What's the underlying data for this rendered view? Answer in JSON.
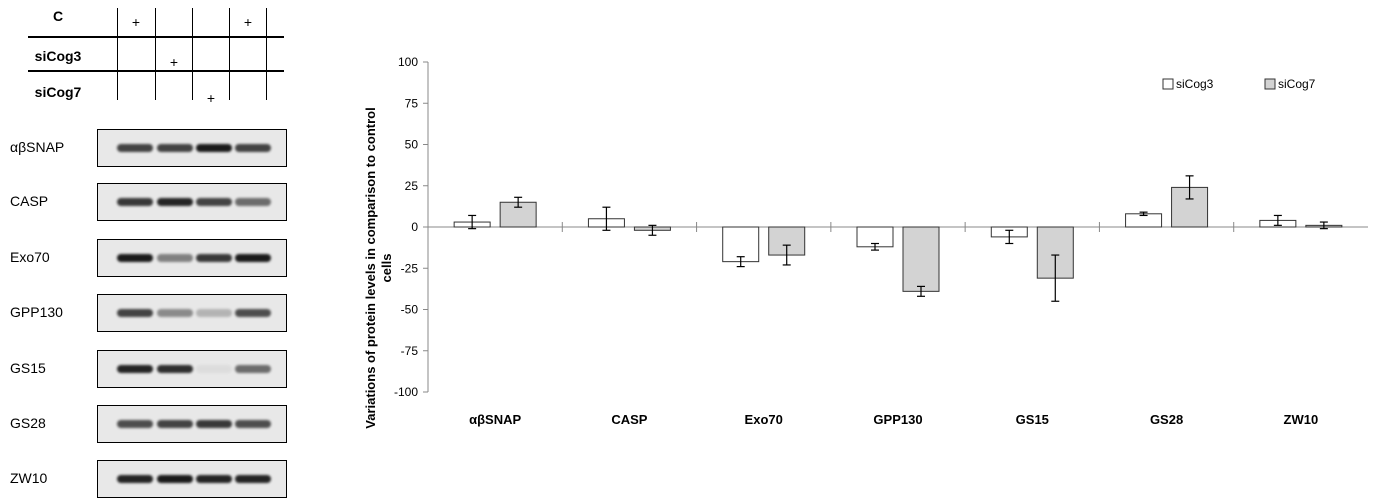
{
  "conditions": {
    "rows": [
      {
        "label": "C",
        "marks": [
          "+",
          "",
          "",
          "+"
        ]
      },
      {
        "label": "siCog3",
        "marks": [
          "",
          "+",
          "",
          ""
        ]
      },
      {
        "label": "siCog7",
        "marks": [
          "",
          "",
          "+",
          ""
        ]
      }
    ]
  },
  "blots": [
    {
      "label": "αβSNAP",
      "intensity": [
        0.8,
        0.8,
        1.0,
        0.8
      ]
    },
    {
      "label": "CASP",
      "intensity": [
        0.85,
        0.95,
        0.8,
        0.6
      ]
    },
    {
      "label": "Exo70",
      "intensity": [
        1.0,
        0.5,
        0.85,
        1.0
      ]
    },
    {
      "label": "GPP130",
      "intensity": [
        0.8,
        0.45,
        0.25,
        0.75
      ]
    },
    {
      "label": "GS15",
      "intensity": [
        0.95,
        0.9,
        0.05,
        0.6
      ]
    },
    {
      "label": "GS28",
      "intensity": [
        0.75,
        0.8,
        0.85,
        0.75
      ]
    },
    {
      "label": "ZW10",
      "intensity": [
        0.95,
        1.0,
        0.95,
        0.95
      ]
    }
  ],
  "chart_data": {
    "type": "bar",
    "categories": [
      "αβSNAP",
      "CASP",
      "Exo70",
      "GPP130",
      "GS15",
      "GS28",
      "ZW10"
    ],
    "series": [
      {
        "name": "siCog3",
        "color": "#ffffff",
        "values": [
          3,
          5,
          -21,
          -12,
          -6,
          8,
          4
        ],
        "errors": [
          4,
          7,
          3,
          2,
          4,
          1,
          3
        ]
      },
      {
        "name": "siCog7",
        "color": "#d3d3d3",
        "values": [
          15,
          -2,
          -17,
          -39,
          -31,
          24,
          1
        ],
        "errors": [
          3,
          3,
          6,
          3,
          14,
          7,
          2
        ]
      }
    ],
    "ylabel": "Variations of protein levels in comparison to control cells",
    "ylim": [
      -100,
      100
    ],
    "yticks": [
      100,
      75,
      50,
      25,
      0,
      -25,
      -50,
      -75,
      -100
    ],
    "legend_position": "top-right"
  }
}
